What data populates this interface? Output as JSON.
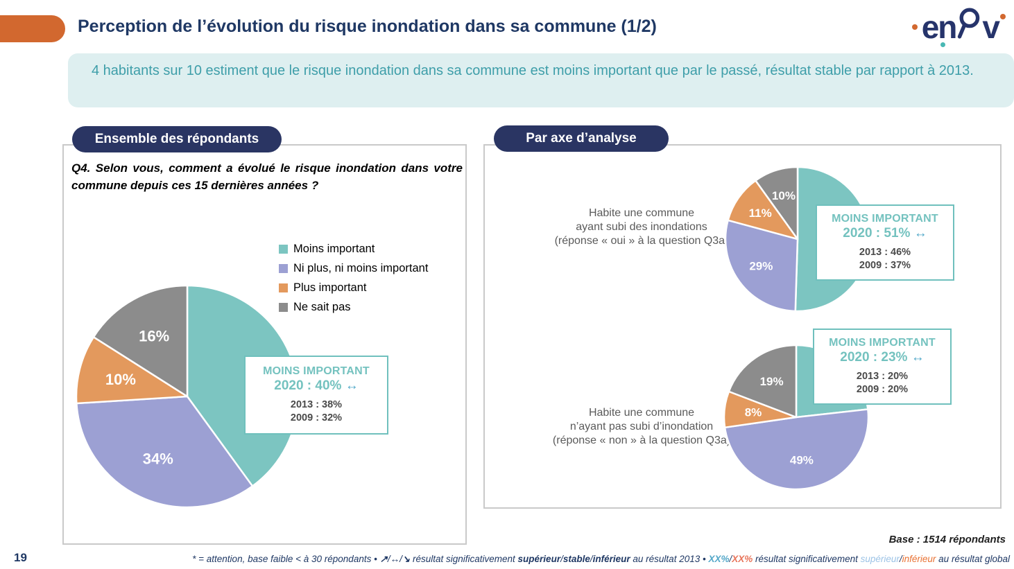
{
  "header": {
    "title": "Perception de l’évolution du risque inondation dans sa commune (1/2)",
    "logo_letters": {
      "l1": "e",
      "l2": "n",
      "l3": "v"
    }
  },
  "summary": {
    "text": "4 habitants sur 10 estiment que le risque inondation dans sa commune est moins important que par le passé, résultat stable par rapport à 2013."
  },
  "left_panel": {
    "header": "Ensemble des répondants",
    "question": "Q4. Selon vous, comment a évolué le risque inondation dans votre commune depuis ces 15 dernières années ?",
    "legend": [
      {
        "label": "Moins important",
        "color": "#7cc5c1"
      },
      {
        "label": "Ni plus, ni moins important",
        "color": "#9ca0d3"
      },
      {
        "label": "Plus important",
        "color": "#e3995d"
      },
      {
        "label": "Ne sait pas",
        "color": "#8c8c8c"
      }
    ]
  },
  "right_panel": {
    "header": "Par axe d’analyse",
    "groups": [
      {
        "lines": [
          "Habite une commune",
          "ayant subi des inondations",
          "(réponse « oui » à la question Q3a)"
        ]
      },
      {
        "lines": [
          "Habite une commune",
          "n’ayant pas subi d’inondation",
          "(réponse « non » à la question Q3a)"
        ]
      }
    ]
  },
  "colors": {
    "pie": [
      "#7cc5c1",
      "#9ca0d3",
      "#e3995d",
      "#8c8c8c"
    ],
    "accent_orange": "#d2682f",
    "navy": "#1f3864",
    "teal_text": "#3e9ea9",
    "callout_border": "#6fc0bd"
  },
  "chart_data": [
    {
      "type": "pie",
      "title": "Ensemble des répondants",
      "categories": [
        "Moins important",
        "Ni plus, ni moins important",
        "Plus important",
        "Ne sait pas"
      ],
      "values": [
        40,
        34,
        10,
        16
      ],
      "slice_labels": [
        "",
        "34%",
        "10%",
        "16%"
      ],
      "legend_position": "right",
      "callout": {
        "heading": "MOINS IMPORTANT",
        "current": "2020 : 40%",
        "trend": "↔",
        "prev1": "2013 : 38%",
        "prev2": "2009 : 32%"
      }
    },
    {
      "type": "pie",
      "title": "Habite une commune ayant subi des inondations (réponse « oui » à la question Q3a)",
      "categories": [
        "Moins important",
        "Ni plus, ni moins important",
        "Plus important",
        "Ne sait pas"
      ],
      "values": [
        51,
        29,
        11,
        10
      ],
      "slice_labels": [
        "",
        "29%",
        "11%",
        "10%"
      ],
      "callout": {
        "heading": "MOINS IMPORTANT",
        "current": "2020 : 51%",
        "trend": "↔",
        "prev1": "2013 : 46%",
        "prev2": "2009 : 37%"
      }
    },
    {
      "type": "pie",
      "title": "Habite une commune n’ayant pas subi d’inondation (réponse « non » à la question Q3a)",
      "categories": [
        "Moins important",
        "Ni plus, ni moins important",
        "Plus important",
        "Ne sait pas"
      ],
      "values": [
        23,
        49,
        8,
        19
      ],
      "slice_labels": [
        "",
        "49%",
        "8%",
        "19%"
      ],
      "callout": {
        "heading": "MOINS IMPORTANT",
        "current": "2020 : 23%",
        "trend": "↔",
        "prev1": "2013 : 20%",
        "prev2": "2009 : 20%"
      }
    }
  ],
  "footer": {
    "base": "Base : 1514 répondants",
    "page_number": "19",
    "footnote_parts": [
      {
        "text": "* = attention, base faible < à 30 répondants • ",
        "style": "navy"
      },
      {
        "text": "↗",
        "style": "navy-bold"
      },
      {
        "text": "/",
        "style": "navy"
      },
      {
        "text": "↔",
        "style": "navy-bold"
      },
      {
        "text": "/",
        "style": "navy"
      },
      {
        "text": "↘",
        "style": "navy-bold"
      },
      {
        "text": " résultat significativement ",
        "style": "navy"
      },
      {
        "text": "supérieur",
        "style": "navy-bold"
      },
      {
        "text": "/",
        "style": "navy"
      },
      {
        "text": "stable",
        "style": "navy-bold"
      },
      {
        "text": "/",
        "style": "navy"
      },
      {
        "text": "inférieur",
        "style": "navy-bold"
      },
      {
        "text": " au résultat 2013 • ",
        "style": "navy"
      },
      {
        "text": "XX%",
        "style": "blue-bold"
      },
      {
        "text": "/",
        "style": "navy"
      },
      {
        "text": "XX%",
        "style": "orange-bold"
      },
      {
        "text": " résultat significativement ",
        "style": "navy"
      },
      {
        "text": "supérieur",
        "style": "blue"
      },
      {
        "text": "/",
        "style": "navy"
      },
      {
        "text": "inférieur",
        "style": "orange"
      },
      {
        "text": " au résultat global",
        "style": "navy"
      }
    ]
  }
}
